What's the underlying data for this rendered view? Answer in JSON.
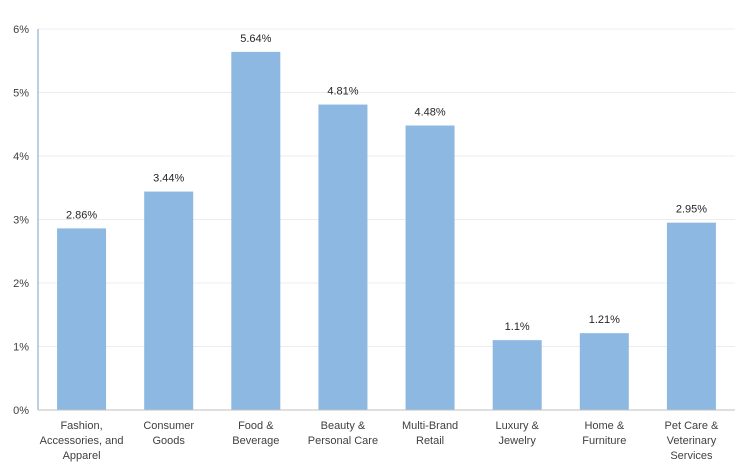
{
  "chart_data": {
    "type": "bar",
    "title": "",
    "xlabel": "",
    "ylabel": "",
    "categories": [
      [
        "Fashion,",
        "Accessories, and",
        "Apparel"
      ],
      [
        "Consumer",
        "Goods"
      ],
      [
        "Food &",
        "Beverage"
      ],
      [
        "Beauty &",
        "Personal Care"
      ],
      [
        "Multi-Brand",
        "Retail"
      ],
      [
        "Luxury &",
        "Jewelry"
      ],
      [
        "Home &",
        "Furniture"
      ],
      [
        "Pet Care &",
        "Veterinary",
        "Services"
      ]
    ],
    "values": [
      2.86,
      3.44,
      5.64,
      4.81,
      4.48,
      1.1,
      1.21,
      2.95
    ],
    "data_labels": [
      "2.86%",
      "3.44%",
      "5.64%",
      "4.81%",
      "4.48%",
      "1.1%",
      "1.21%",
      "2.95%"
    ],
    "ylim": [
      0,
      6
    ],
    "yticks": [
      0,
      1,
      2,
      3,
      4,
      5,
      6
    ],
    "ytick_labels": [
      "0%",
      "1%",
      "2%",
      "3%",
      "4%",
      "5%",
      "6%"
    ],
    "grid": true,
    "legend": "none",
    "colors": {
      "bar": "#8db8e2",
      "grid": "#ececec",
      "axis": "#7f9fc6"
    }
  }
}
